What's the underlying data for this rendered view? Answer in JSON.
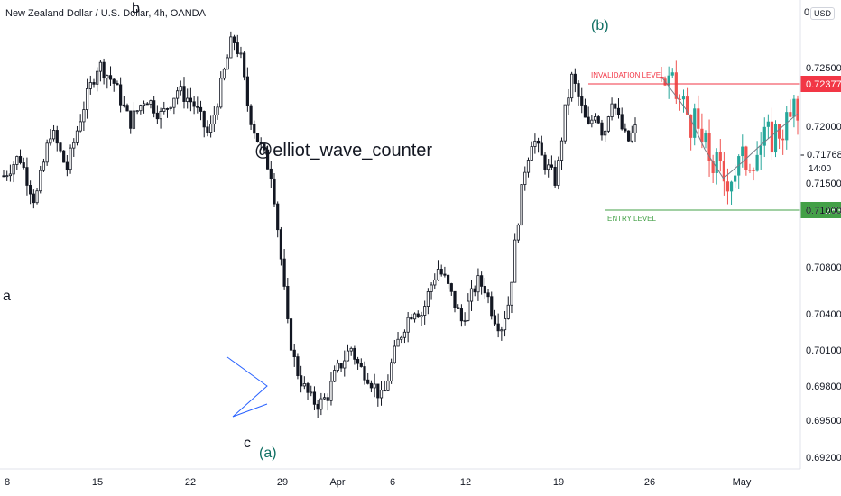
{
  "header": {
    "title": "New Zealand Dollar / U.S. Dollar, 4h, OANDA",
    "scale_label": "0",
    "currency": "USD"
  },
  "watermark": "@elliot_wave_counter",
  "waves": {
    "a": "a",
    "b": "b",
    "c": "c",
    "paren_a": "(a)",
    "paren_b": "(b)"
  },
  "levels": {
    "invalidation": {
      "label": "INVALIDATION LEVEL",
      "price": "0.72377",
      "color": "#f23645"
    },
    "entry": {
      "label": "ENTRY LEVEL",
      "price": "0.71283",
      "color": "#43a047"
    },
    "current": {
      "price": "0.71768",
      "time": "14:00"
    }
  },
  "colors": {
    "up": "#131722",
    "down": "#131722",
    "forecast_up": "#26a69a",
    "forecast_down": "#ef5350",
    "triangle": "#2962ff",
    "path": "#787b86"
  },
  "chart_data": {
    "type": "candlestick",
    "title": "New Zealand Dollar / U.S. Dollar, 4h, OANDA",
    "y_ticks": [
      "0.72500",
      "0.72000",
      "0.71500",
      "0.71000",
      "0.70800",
      "0.70400",
      "0.70100",
      "0.69800",
      "0.69500",
      "0.69200"
    ],
    "x_ticks": [
      "8",
      "15",
      "22",
      "29",
      "Apr",
      "6",
      "12",
      "19",
      "26",
      "May"
    ],
    "close_path": [
      [
        0,
        0.7135
      ],
      [
        4,
        0.715
      ],
      [
        8,
        0.7115
      ],
      [
        12,
        0.717
      ],
      [
        16,
        0.714
      ],
      [
        20,
        0.7185
      ],
      [
        24,
        0.722
      ],
      [
        28,
        0.7205
      ],
      [
        32,
        0.7175
      ],
      [
        36,
        0.7195
      ],
      [
        40,
        0.718
      ],
      [
        44,
        0.72
      ],
      [
        48,
        0.719
      ],
      [
        52,
        0.7165
      ],
      [
        56,
        0.7215
      ],
      [
        58,
        0.724
      ],
      [
        60,
        0.7225
      ],
      [
        62,
        0.7185
      ],
      [
        64,
        0.7165
      ],
      [
        66,
        0.715
      ],
      [
        68,
        0.7135
      ],
      [
        70,
        0.708
      ],
      [
        72,
        0.702
      ],
      [
        74,
        0.699
      ],
      [
        76,
        0.6975
      ],
      [
        78,
        0.6965
      ],
      [
        80,
        0.6962
      ],
      [
        82,
        0.6968
      ],
      [
        84,
        0.6985
      ],
      [
        86,
        0.6995
      ],
      [
        88,
        0.7005
      ],
      [
        90,
        0.699
      ],
      [
        92,
        0.6985
      ],
      [
        94,
        0.6975
      ],
      [
        96,
        0.6965
      ],
      [
        98,
        0.699
      ],
      [
        100,
        0.701
      ],
      [
        102,
        0.7025
      ],
      [
        104,
        0.7035
      ],
      [
        106,
        0.703
      ],
      [
        108,
        0.705
      ],
      [
        110,
        0.7065
      ],
      [
        112,
        0.7055
      ],
      [
        114,
        0.704
      ],
      [
        116,
        0.7025
      ],
      [
        118,
        0.704
      ],
      [
        120,
        0.7055
      ],
      [
        122,
        0.705
      ],
      [
        124,
        0.703
      ],
      [
        126,
        0.702
      ],
      [
        128,
        0.704
      ],
      [
        130,
        0.7095
      ],
      [
        132,
        0.714
      ],
      [
        134,
        0.7165
      ],
      [
        136,
        0.715
      ],
      [
        138,
        0.714
      ],
      [
        140,
        0.713
      ],
      [
        142,
        0.718
      ],
      [
        144,
        0.721
      ],
      [
        146,
        0.719
      ],
      [
        148,
        0.717
      ],
      [
        150,
        0.7185
      ],
      [
        152,
        0.7165
      ],
      [
        154,
        0.7195
      ],
      [
        156,
        0.7175
      ],
      [
        158,
        0.716
      ],
      [
        160,
        0.717
      ]
    ],
    "forecast_path": [
      [
        0,
        0.721
      ],
      [
        8,
        0.7185
      ],
      [
        14,
        0.7155
      ],
      [
        20,
        0.7133
      ],
      [
        26,
        0.7145
      ],
      [
        32,
        0.7158
      ],
      [
        38,
        0.717
      ],
      [
        44,
        0.7182
      ]
    ],
    "ylim": [
      0.6913,
      0.7268
    ]
  }
}
